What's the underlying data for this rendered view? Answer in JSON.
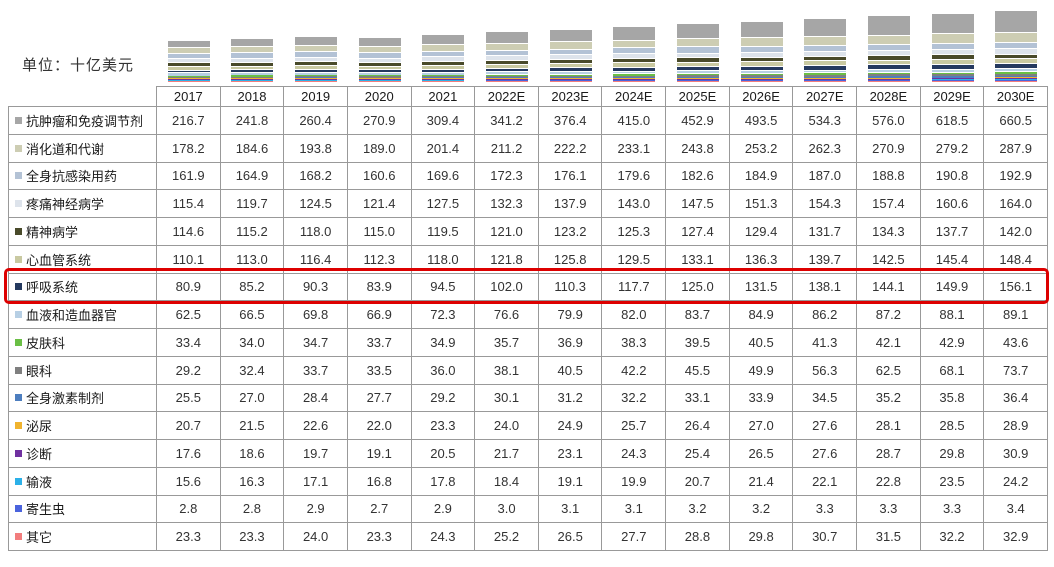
{
  "unit_label": "单位：十亿美元",
  "highlight": {
    "row": "呼吸系统",
    "color": "#dd0000"
  },
  "chart_data": {
    "type": "bar",
    "stacked": true,
    "title": "",
    "xlabel": "",
    "ylabel": "十亿美元",
    "legend_position": "table-left-column",
    "grid": false,
    "categories": [
      "2017",
      "2018",
      "2019",
      "2020",
      "2021",
      "2022E",
      "2023E",
      "2024E",
      "2025E",
      "2026E",
      "2027E",
      "2028E",
      "2029E",
      "2030E"
    ],
    "series": [
      {
        "name": "抗肿瘤和免疫调节剂",
        "color": "#a6a6a6",
        "values": [
          216.7,
          241.8,
          260.4,
          270.9,
          309.4,
          341.2,
          376.4,
          415.0,
          452.9,
          493.5,
          534.3,
          576.0,
          618.5,
          660.5
        ]
      },
      {
        "name": "消化道和代谢",
        "color": "#cdcdb3",
        "values": [
          178.2,
          184.6,
          193.8,
          189.0,
          201.4,
          211.2,
          222.2,
          233.1,
          243.8,
          253.2,
          262.3,
          270.9,
          279.2,
          287.9
        ]
      },
      {
        "name": "全身抗感染用药",
        "color": "#b3c2d5",
        "values": [
          161.9,
          164.9,
          168.2,
          160.6,
          169.6,
          172.3,
          176.1,
          179.6,
          182.6,
          184.9,
          187.0,
          188.8,
          190.8,
          192.9
        ]
      },
      {
        "name": "疼痛神经病学",
        "color": "#dde3eb",
        "values": [
          115.4,
          119.7,
          124.5,
          121.4,
          127.5,
          132.3,
          137.9,
          143.0,
          147.5,
          151.3,
          154.3,
          157.4,
          160.6,
          164.0
        ]
      },
      {
        "name": "精神病学",
        "color": "#494a2a",
        "values": [
          114.6,
          115.2,
          118.0,
          115.0,
          119.5,
          121.0,
          123.2,
          125.3,
          127.4,
          129.4,
          131.7,
          134.3,
          137.7,
          142.0
        ]
      },
      {
        "name": "心血管系统",
        "color": "#c9c9a1",
        "values": [
          110.1,
          113.0,
          116.4,
          112.3,
          118.0,
          121.8,
          125.8,
          129.5,
          133.1,
          136.3,
          139.7,
          142.5,
          145.4,
          148.4
        ]
      },
      {
        "name": "呼吸系统",
        "color": "#25395f",
        "values": [
          80.9,
          85.2,
          90.3,
          83.9,
          94.5,
          102.0,
          110.3,
          117.7,
          125.0,
          131.5,
          138.1,
          144.1,
          149.9,
          156.1
        ]
      },
      {
        "name": "血液和造血器官",
        "color": "#b7cfe4",
        "values": [
          62.5,
          66.5,
          69.8,
          66.9,
          72.3,
          76.6,
          79.9,
          82.0,
          83.7,
          84.9,
          86.2,
          87.2,
          88.1,
          89.1
        ]
      },
      {
        "name": "皮肤科",
        "color": "#6abf45",
        "values": [
          33.4,
          34.0,
          34.7,
          33.7,
          34.9,
          35.7,
          36.9,
          38.3,
          39.5,
          40.5,
          41.3,
          42.1,
          42.9,
          43.6
        ]
      },
      {
        "name": "眼科",
        "color": "#7f7f7f",
        "values": [
          29.2,
          32.4,
          33.7,
          33.5,
          36.0,
          38.1,
          40.5,
          42.2,
          45.5,
          49.9,
          56.3,
          62.5,
          68.1,
          73.7
        ]
      },
      {
        "name": "全身激素制剂",
        "color": "#4d7ebf",
        "values": [
          25.5,
          27.0,
          28.4,
          27.7,
          29.2,
          30.1,
          31.2,
          32.2,
          33.1,
          33.9,
          34.5,
          35.2,
          35.8,
          36.4
        ]
      },
      {
        "name": "泌尿",
        "color": "#f0b32e",
        "values": [
          20.7,
          21.5,
          22.6,
          22.0,
          23.3,
          24.0,
          24.9,
          25.7,
          26.4,
          27.0,
          27.6,
          28.1,
          28.5,
          28.9
        ]
      },
      {
        "name": " 诊断",
        "color": "#7030a0",
        "values": [
          17.6,
          18.6,
          19.7,
          19.1,
          20.5,
          21.7,
          23.1,
          24.3,
          25.4,
          26.5,
          27.6,
          28.7,
          29.8,
          30.9
        ]
      },
      {
        "name": "输液",
        "color": "#2bb0e8",
        "values": [
          15.6,
          16.3,
          17.1,
          16.8,
          17.8,
          18.4,
          19.1,
          19.9,
          20.7,
          21.4,
          22.1,
          22.8,
          23.5,
          24.2
        ]
      },
      {
        "name": "寄生虫",
        "color": "#4a63dd",
        "values": [
          2.8,
          2.8,
          2.9,
          2.7,
          2.9,
          3.0,
          3.1,
          3.1,
          3.2,
          3.2,
          3.3,
          3.3,
          3.3,
          3.4
        ]
      },
      {
        "name": "其它",
        "color": "#f27d7d",
        "values": [
          23.3,
          23.3,
          24.0,
          23.3,
          24.3,
          25.2,
          26.5,
          27.7,
          28.8,
          29.8,
          30.7,
          31.5,
          32.2,
          32.9
        ]
      }
    ]
  }
}
